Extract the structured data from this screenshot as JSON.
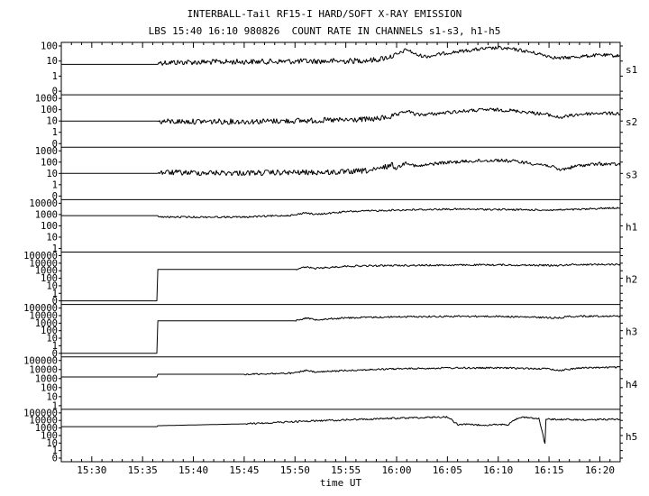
{
  "chart_data": {
    "type": "line",
    "title": "INTERBALL-Tail RF15-I HARD/SOFT X-RAY EMISSION",
    "subtitle": "LBS 15:40 16:10 980826  COUNT RATE IN CHANNELS s1-s3, h1-h5",
    "xlabel": "time UT",
    "x_ticks": [
      "15:30",
      "15:35",
      "15:40",
      "15:45",
      "15:50",
      "15:55",
      "16:00",
      "16:05",
      "16:10",
      "16:15",
      "16:20"
    ],
    "xlim": [
      "15:27",
      "16:22"
    ],
    "panels": [
      {
        "name": "s1",
        "y_ticks": [
          "100",
          "10",
          "1",
          "0"
        ],
        "points": [
          [
            "15:27",
            6
          ],
          [
            "15:36.5",
            6
          ],
          [
            "15:36.6",
            8
          ],
          [
            "15:45",
            9
          ],
          [
            "15:55",
            10
          ],
          [
            "15:58",
            12
          ],
          [
            "16:00",
            25
          ],
          [
            "16:01",
            60
          ],
          [
            "16:02",
            25
          ],
          [
            "16:03",
            20
          ],
          [
            "16:05",
            35
          ],
          [
            "16:08",
            60
          ],
          [
            "16:10",
            75
          ],
          [
            "16:12",
            55
          ],
          [
            "16:14",
            30
          ],
          [
            "16:16",
            15
          ],
          [
            "16:18",
            20
          ],
          [
            "16:20",
            25
          ],
          [
            "16:22",
            22
          ]
        ]
      },
      {
        "name": "s2",
        "y_ticks": [
          "1000",
          "100",
          "10",
          "1",
          "0"
        ],
        "points": [
          [
            "15:27",
            10
          ],
          [
            "15:36.5",
            10
          ],
          [
            "15:36.6",
            9
          ],
          [
            "15:45",
            9
          ],
          [
            "15:55",
            12
          ],
          [
            "15:58",
            15
          ],
          [
            "16:00",
            30
          ],
          [
            "16:01",
            80
          ],
          [
            "16:02",
            35
          ],
          [
            "16:04",
            45
          ],
          [
            "16:06",
            70
          ],
          [
            "16:09",
            100
          ],
          [
            "16:11",
            90
          ],
          [
            "16:13",
            60
          ],
          [
            "16:15",
            35
          ],
          [
            "16:16",
            20
          ],
          [
            "16:18",
            40
          ],
          [
            "16:20",
            50
          ],
          [
            "16:22",
            45
          ]
        ]
      },
      {
        "name": "s3",
        "y_ticks": [
          "1000",
          "100",
          "10",
          "1",
          "0"
        ],
        "points": [
          [
            "15:27",
            10
          ],
          [
            "15:36.5",
            10
          ],
          [
            "15:36.6",
            12
          ],
          [
            "15:45",
            11
          ],
          [
            "15:55",
            13
          ],
          [
            "15:58",
            20
          ],
          [
            "15:59.5",
            60
          ],
          [
            "16:00",
            30
          ],
          [
            "16:01",
            100
          ],
          [
            "16:02",
            40
          ],
          [
            "16:04",
            80
          ],
          [
            "16:07",
            120
          ],
          [
            "16:10",
            150
          ],
          [
            "16:12",
            110
          ],
          [
            "16:15",
            50
          ],
          [
            "16:16",
            20
          ],
          [
            "16:18",
            50
          ],
          [
            "16:20",
            70
          ],
          [
            "16:22",
            60
          ]
        ]
      },
      {
        "name": "h1",
        "y_ticks": [
          "10000",
          "1000",
          "100",
          "10",
          "1"
        ],
        "points": [
          [
            "15:27",
            800
          ],
          [
            "15:36.5",
            800
          ],
          [
            "15:36.6",
            600
          ],
          [
            "15:45",
            600
          ],
          [
            "15:50",
            900
          ],
          [
            "15:51",
            1500
          ],
          [
            "15:52",
            1000
          ],
          [
            "15:55",
            1800
          ],
          [
            "16:00",
            2500
          ],
          [
            "16:05",
            3000
          ],
          [
            "16:10",
            2800
          ],
          [
            "16:15",
            2500
          ],
          [
            "16:18",
            2800
          ],
          [
            "16:20",
            3500
          ],
          [
            "16:22",
            4000
          ]
        ]
      },
      {
        "name": "h2",
        "y_ticks": [
          "100000",
          "10000",
          "1000",
          "100",
          "10",
          "1",
          "0"
        ],
        "points": [
          [
            "15:27",
            0
          ],
          [
            "15:36.4",
            0
          ],
          [
            "15:36.5",
            1500
          ],
          [
            "15:50",
            1500
          ],
          [
            "15:51",
            3000
          ],
          [
            "15:52",
            2000
          ],
          [
            "15:55",
            4000
          ],
          [
            "16:00",
            5000
          ],
          [
            "16:05",
            5500
          ],
          [
            "16:10",
            6000
          ],
          [
            "16:16",
            5000
          ],
          [
            "16:17",
            6500
          ],
          [
            "16:22",
            7000
          ]
        ]
      },
      {
        "name": "h3",
        "y_ticks": [
          "100000",
          "10000",
          "1000",
          "100",
          "10",
          "1",
          "0"
        ],
        "points": [
          [
            "15:27",
            0
          ],
          [
            "15:36.4",
            0
          ],
          [
            "15:36.5",
            2000
          ],
          [
            "15:50",
            2000
          ],
          [
            "15:51",
            5000
          ],
          [
            "15:52",
            3000
          ],
          [
            "15:55",
            5000
          ],
          [
            "16:00",
            7000
          ],
          [
            "16:05",
            8000
          ],
          [
            "16:10",
            8000
          ],
          [
            "16:16",
            5000
          ],
          [
            "16:17",
            8000
          ],
          [
            "16:22",
            9000
          ]
        ]
      },
      {
        "name": "h4",
        "y_ticks": [
          "100000",
          "10000",
          "1000",
          "100",
          "10",
          "1"
        ],
        "points": [
          [
            "15:27",
            1500
          ],
          [
            "15:36.4",
            1500
          ],
          [
            "15:36.5",
            3000
          ],
          [
            "15:45",
            3000
          ],
          [
            "15:50",
            4000
          ],
          [
            "15:51",
            8000
          ],
          [
            "15:52",
            5000
          ],
          [
            "15:55",
            8000
          ],
          [
            "16:00",
            12000
          ],
          [
            "16:05",
            15000
          ],
          [
            "16:10",
            15000
          ],
          [
            "16:15",
            12000
          ],
          [
            "16:16",
            8000
          ],
          [
            "16:18",
            15000
          ],
          [
            "16:22",
            18000
          ]
        ]
      },
      {
        "name": "h5",
        "y_ticks": [
          "100000",
          "10000",
          "1000",
          "100",
          "10",
          "1",
          "0"
        ],
        "points": [
          [
            "15:27",
            1500
          ],
          [
            "15:36.4",
            1500
          ],
          [
            "15:36.5",
            2000
          ],
          [
            "15:45",
            3500
          ],
          [
            "15:51",
            8000
          ],
          [
            "15:55",
            12000
          ],
          [
            "16:00",
            20000
          ],
          [
            "16:05",
            30000
          ],
          [
            "16:06",
            3000
          ],
          [
            "16:09",
            2500
          ],
          [
            "16:11",
            3000
          ],
          [
            "16:12",
            25000
          ],
          [
            "16:14",
            20000
          ],
          [
            "16:14.6",
            8
          ],
          [
            "16:14.7",
            15000
          ],
          [
            "16:18",
            12000
          ],
          [
            "16:22",
            15000
          ]
        ]
      }
    ]
  }
}
